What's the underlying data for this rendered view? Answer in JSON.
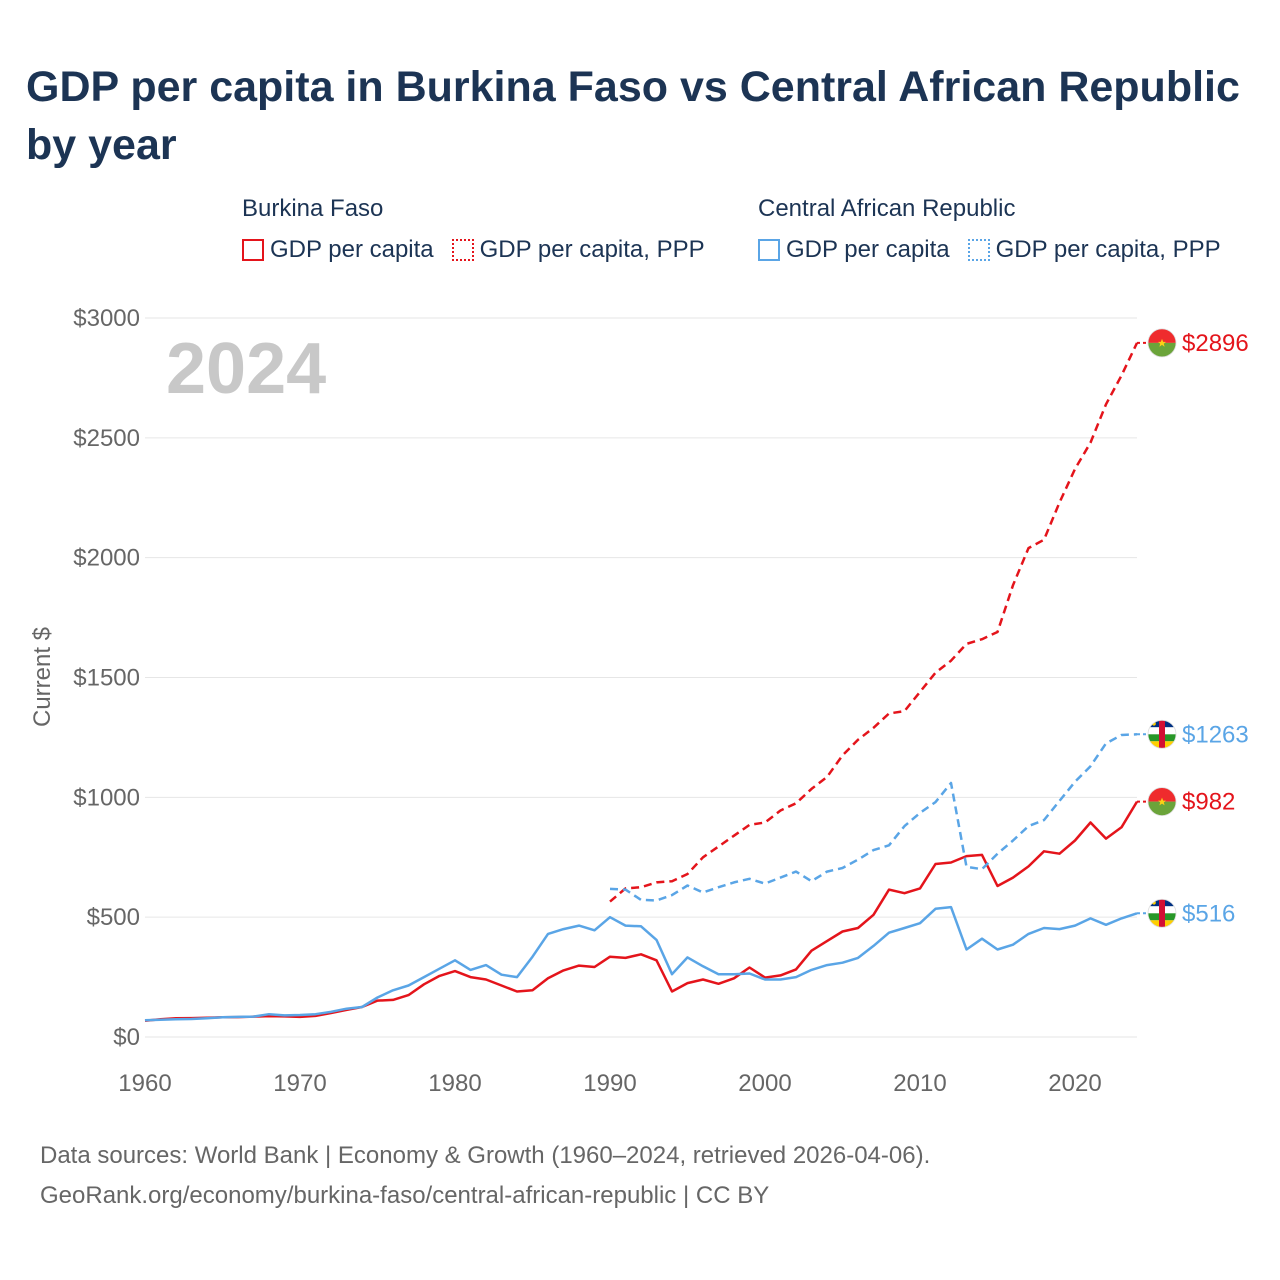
{
  "title": "GDP per capita in Burkina Faso vs Central African Republic by year",
  "legend": {
    "groups": [
      {
        "name": "Burkina Faso",
        "items": [
          "GDP per capita",
          "GDP per capita, PPP"
        ]
      },
      {
        "name": "Central African Republic",
        "items": [
          "GDP per capita",
          "GDP per capita, PPP"
        ]
      }
    ]
  },
  "year_watermark": "2024",
  "footer": {
    "line1": "Data sources: World Bank | Economy & Growth (1960–2024, retrieved 2026-04-06).",
    "line2": "GeoRank.org/economy/burkina-faso/central-african-republic | CC BY"
  },
  "colors": {
    "burkina_faso": "#e4141b",
    "car": "#5aa5e6",
    "title": "#1c3454",
    "axis_text": "#666666",
    "watermark": "#c8c8c8"
  },
  "chart_data": {
    "type": "line",
    "title": "GDP per capita in Burkina Faso vs Central African Republic by year",
    "xlabel": "",
    "ylabel": "Current $",
    "xlim": [
      1960,
      2024
    ],
    "ylim": [
      0,
      3000
    ],
    "x_ticks": [
      1960,
      1970,
      1980,
      1990,
      2000,
      2010,
      2020
    ],
    "y_ticks": [
      0,
      500,
      1000,
      1500,
      2000,
      2500,
      3000
    ],
    "y_tick_labels": [
      "$0",
      "$500",
      "$1000",
      "$1500",
      "$2000",
      "$2500",
      "$3000"
    ],
    "grid": true,
    "series": [
      {
        "name": "Burkina Faso — GDP per capita",
        "style": "solid",
        "color": "#e4141b",
        "end_label": "$982",
        "x": [
          1960,
          1961,
          1962,
          1963,
          1964,
          1965,
          1966,
          1967,
          1968,
          1969,
          1970,
          1971,
          1972,
          1973,
          1974,
          1975,
          1976,
          1977,
          1978,
          1979,
          1980,
          1981,
          1982,
          1983,
          1984,
          1985,
          1986,
          1987,
          1988,
          1989,
          1990,
          1991,
          1992,
          1993,
          1994,
          1995,
          1996,
          1997,
          1998,
          1999,
          2000,
          2001,
          2002,
          2003,
          2004,
          2005,
          2006,
          2007,
          2008,
          2009,
          2010,
          2011,
          2012,
          2013,
          2014,
          2015,
          2016,
          2017,
          2018,
          2019,
          2020,
          2021,
          2022,
          2023,
          2024
        ],
        "values": [
          68,
          74,
          78,
          79,
          80,
          82,
          83,
          85,
          87,
          86,
          84,
          88,
          100,
          113,
          125,
          152,
          155,
          175,
          220,
          255,
          275,
          250,
          240,
          215,
          190,
          195,
          245,
          278,
          298,
          292,
          335,
          330,
          345,
          320,
          190,
          225,
          240,
          222,
          245,
          290,
          248,
          257,
          282,
          360,
          400,
          440,
          455,
          510,
          615,
          600,
          620,
          722,
          728,
          755,
          760,
          630,
          665,
          712,
          775,
          765,
          820,
          895,
          828,
          875,
          982
        ]
      },
      {
        "name": "Burkina Faso — GDP per capita, PPP",
        "style": "dashed",
        "color": "#e4141b",
        "end_label": "$2896",
        "x": [
          1990,
          1991,
          1992,
          1993,
          1994,
          1995,
          1996,
          1997,
          1998,
          1999,
          2000,
          2001,
          2002,
          2003,
          2004,
          2005,
          2006,
          2007,
          2008,
          2009,
          2010,
          2011,
          2012,
          2013,
          2014,
          2015,
          2016,
          2017,
          2018,
          2019,
          2020,
          2021,
          2022,
          2023,
          2024
        ],
        "values": [
          565,
          620,
          625,
          645,
          650,
          680,
          750,
          795,
          840,
          885,
          895,
          945,
          975,
          1035,
          1085,
          1175,
          1240,
          1290,
          1350,
          1360,
          1440,
          1520,
          1570,
          1640,
          1660,
          1690,
          1885,
          2040,
          2075,
          2230,
          2370,
          2480,
          2640,
          2760,
          2896
        ]
      },
      {
        "name": "Central African Republic — GDP per capita",
        "style": "solid",
        "color": "#5aa5e6",
        "end_label": "$516",
        "x": [
          1960,
          1961,
          1962,
          1963,
          1964,
          1965,
          1966,
          1967,
          1968,
          1969,
          1970,
          1971,
          1972,
          1973,
          1974,
          1975,
          1976,
          1977,
          1978,
          1979,
          1980,
          1981,
          1982,
          1983,
          1984,
          1985,
          1986,
          1987,
          1988,
          1989,
          1990,
          1991,
          1992,
          1993,
          1994,
          1995,
          1996,
          1997,
          1998,
          1999,
          2000,
          2001,
          2002,
          2003,
          2004,
          2005,
          2006,
          2007,
          2008,
          2009,
          2010,
          2011,
          2012,
          2013,
          2014,
          2015,
          2016,
          2017,
          2018,
          2019,
          2020,
          2021,
          2022,
          2023,
          2024
        ],
        "values": [
          70,
          72,
          74,
          75,
          78,
          82,
          84,
          85,
          95,
          90,
          92,
          95,
          105,
          118,
          125,
          165,
          195,
          215,
          250,
          285,
          320,
          280,
          300,
          260,
          250,
          335,
          430,
          450,
          465,
          445,
          500,
          465,
          462,
          405,
          262,
          332,
          295,
          262,
          262,
          265,
          240,
          240,
          250,
          280,
          300,
          310,
          330,
          380,
          435,
          455,
          475,
          535,
          542,
          365,
          410,
          365,
          385,
          430,
          455,
          450,
          465,
          495,
          468,
          495,
          516
        ]
      },
      {
        "name": "Central African Republic — GDP per capita, PPP",
        "style": "dashed",
        "color": "#5aa5e6",
        "end_label": "$1263",
        "x": [
          1990,
          1991,
          1992,
          1993,
          1994,
          1995,
          1996,
          1997,
          1998,
          1999,
          2000,
          2001,
          2002,
          2003,
          2004,
          2005,
          2006,
          2007,
          2008,
          2009,
          2010,
          2011,
          2012,
          2013,
          2014,
          2015,
          2016,
          2017,
          2018,
          2019,
          2020,
          2021,
          2022,
          2023,
          2024
        ],
        "values": [
          618,
          615,
          572,
          570,
          592,
          632,
          603,
          625,
          645,
          660,
          640,
          665,
          690,
          650,
          690,
          705,
          740,
          780,
          800,
          880,
          935,
          980,
          1060,
          710,
          700,
          765,
          820,
          880,
          905,
          985,
          1065,
          1130,
          1225,
          1260,
          1263
        ]
      }
    ]
  }
}
